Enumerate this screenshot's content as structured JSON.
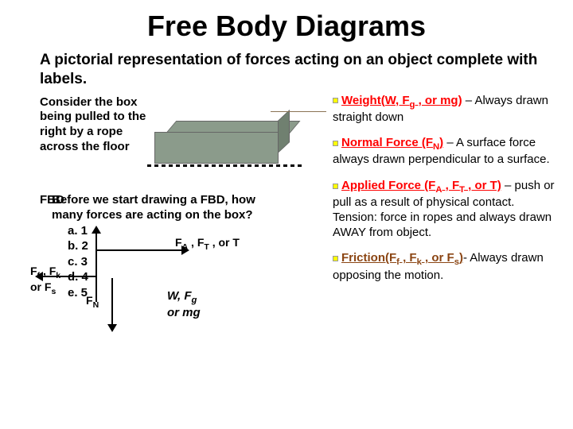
{
  "title": "Free Body Diagrams",
  "subtitle": "A pictorial representation of forces acting on an object complete with labels.",
  "consider_text": "Consider the box being pulled to the right by a rope across the floor",
  "question": {
    "prompt_line1": "Before we start drawing a FBD, how",
    "prompt_line2": "many forces are acting on the box?",
    "opt_a": "a.  1",
    "opt_b": "b.  2",
    "opt_c": "c.  3",
    "opt_d": "d.  4",
    "opt_e": "e.  5"
  },
  "fbd_label": "FBD",
  "fa_label": "F<sub>A</sub> , F<sub>T</sub> , or T",
  "friction_label": "F<sub>f</sub> , F<sub>k</sub><br>or F<sub>s</sub>",
  "fn_label": "F<sub>N</sub>",
  "weight_label": "<i>W</i>, F<sub>g</sub><br>or mg",
  "definitions": {
    "weight": {
      "term": "Weight(W, F<sub>g</sub> , or mg)",
      "desc": " – Always drawn  straight down"
    },
    "normal": {
      "term": "Normal Force (F<sub>N</sub>)",
      "desc": " – A surface force always drawn perpendicular to a surface."
    },
    "applied": {
      "term": "Applied Force (F<sub>A</sub>  , F<sub>T</sub>  , or T)",
      "desc": " – push or pull as a result of physical contact. Tension: force in ropes and always drawn AWAY from object."
    },
    "friction": {
      "term": "Friction(F<sub>f</sub> , F<sub>k</sub> , or F<sub>s</sub>)",
      "desc": "- Always drawn opposing the motion."
    }
  },
  "colors": {
    "red": "#ff0000",
    "brown": "#8B4513",
    "box_fill": "#8B9B8B",
    "bullet": "#FFFF00",
    "background": "#ffffff"
  }
}
